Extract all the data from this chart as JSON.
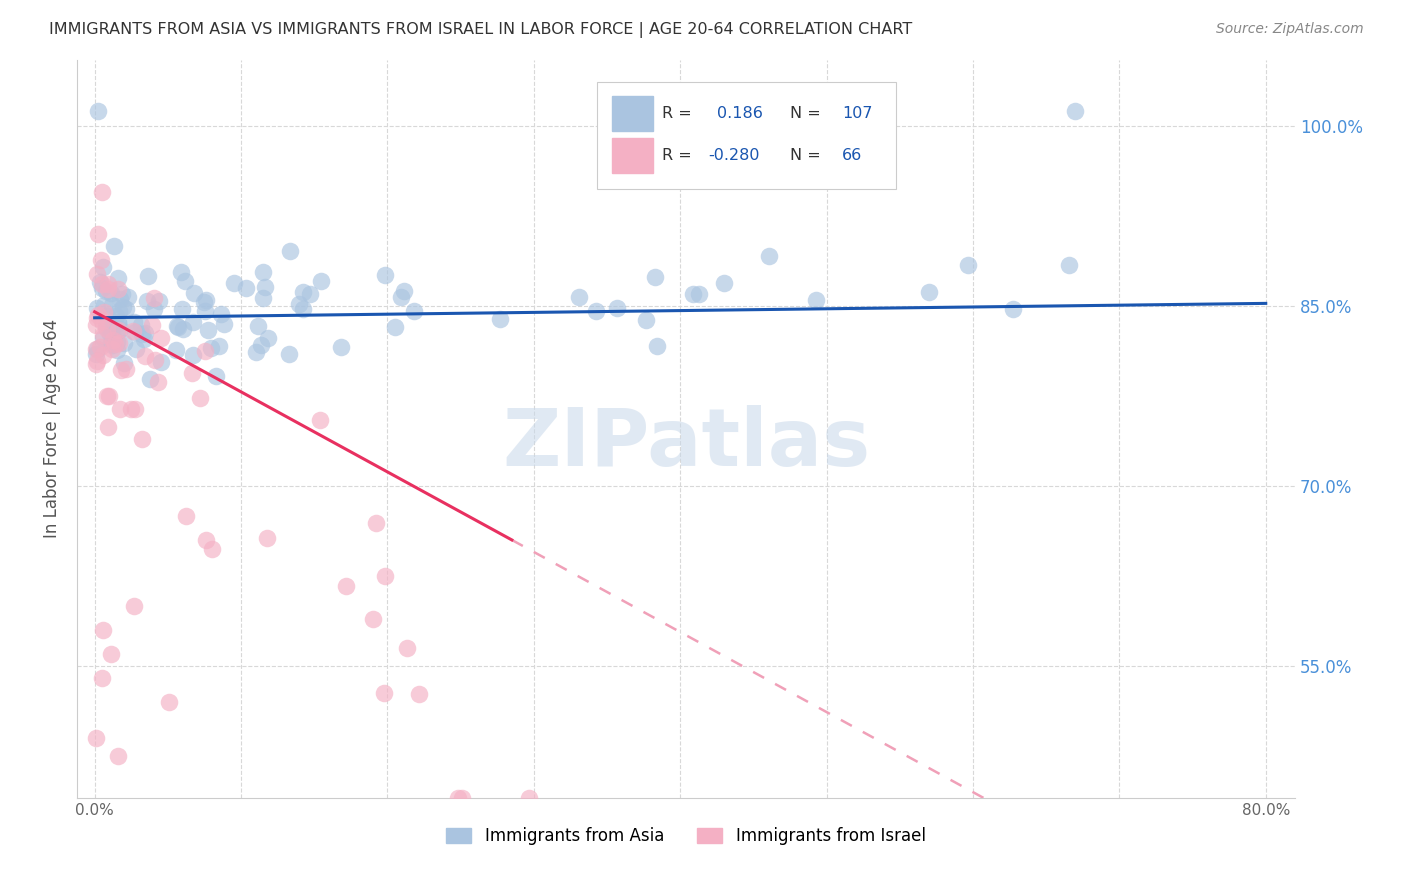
{
  "title": "IMMIGRANTS FROM ASIA VS IMMIGRANTS FROM ISRAEL IN LABOR FORCE | AGE 20-64 CORRELATION CHART",
  "source": "Source: ZipAtlas.com",
  "ylabel": "In Labor Force | Age 20-64",
  "legend_r_asia": "0.186",
  "legend_n_asia": "107",
  "legend_r_israel": "-0.280",
  "legend_n_israel": "66",
  "asia_color": "#aac4e0",
  "israel_color": "#f4b0c4",
  "trend_asia_color": "#1a56b0",
  "trend_israel_solid_color": "#e83060",
  "trend_israel_dash_color": "#f0a0b8",
  "watermark_color": "#c8d8ea",
  "background_color": "#ffffff",
  "grid_color": "#d8d8d8",
  "title_color": "#333333",
  "right_tick_color": "#4a90d9",
  "legend_text_color": "#1a56b0",
  "legend_label_color": "#333333"
}
